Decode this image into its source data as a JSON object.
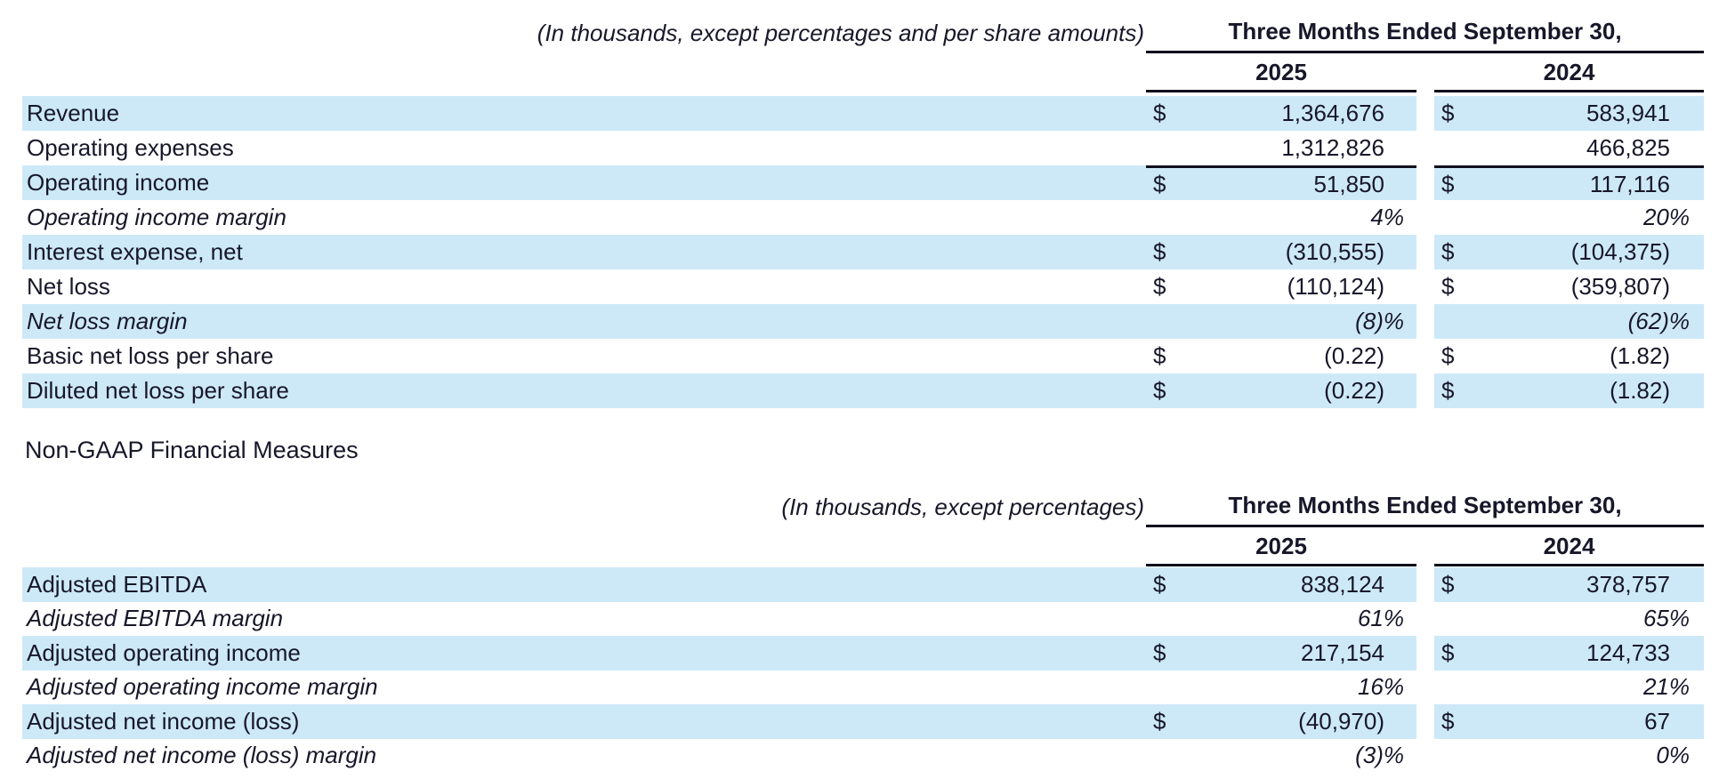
{
  "page": {
    "section_heading": "Non-GAAP Financial Measures"
  },
  "colors": {
    "row_highlight": "#cde9f8",
    "text": "#17172a",
    "rule": "#10101c"
  },
  "gaap_table": {
    "caption": "(In thousands, except percentages and per share amounts)",
    "period_header": "Three Months Ended September 30,",
    "years": [
      "2025",
      "2024"
    ],
    "rows": [
      {
        "label": "Revenue",
        "cur_2025": "$",
        "val_2025": "1,364,676",
        "cur_2024": "$",
        "val_2024": "583,941"
      },
      {
        "label": "Operating expenses",
        "cur_2025": "",
        "val_2025": "1,312,826",
        "cur_2024": "",
        "val_2024": "466,825"
      },
      {
        "label": "Operating income",
        "cur_2025": "$",
        "val_2025": "51,850",
        "cur_2024": "$",
        "val_2024": "117,116"
      },
      {
        "label": "Operating income margin",
        "cur_2025": "",
        "val_2025": "4%",
        "cur_2024": "",
        "val_2024": "20%"
      },
      {
        "label": "Interest expense, net",
        "cur_2025": "$",
        "val_2025": "(310,555)",
        "cur_2024": "$",
        "val_2024": "(104,375)"
      },
      {
        "label": "Net loss",
        "cur_2025": "$",
        "val_2025": "(110,124)",
        "cur_2024": "$",
        "val_2024": "(359,807)"
      },
      {
        "label": "Net loss margin",
        "cur_2025": "",
        "val_2025": "(8)%",
        "cur_2024": "",
        "val_2024": "(62)%"
      },
      {
        "label": "Basic net loss per share",
        "cur_2025": "$",
        "val_2025": "(0.22)",
        "cur_2024": "$",
        "val_2024": "(1.82)"
      },
      {
        "label": "Diluted net loss per share",
        "cur_2025": "$",
        "val_2025": "(0.22)",
        "cur_2024": "$",
        "val_2024": "(1.82)"
      }
    ]
  },
  "non_gaap_table": {
    "caption": "(In thousands, except percentages)",
    "period_header": "Three Months Ended September 30,",
    "years": [
      "2025",
      "2024"
    ],
    "rows": [
      {
        "label": "Adjusted EBITDA",
        "cur_2025": "$",
        "val_2025": "838,124",
        "cur_2024": "$",
        "val_2024": "378,757"
      },
      {
        "label": "Adjusted EBITDA margin",
        "cur_2025": "",
        "val_2025": "61%",
        "cur_2024": "",
        "val_2024": "65%"
      },
      {
        "label": "Adjusted operating income",
        "cur_2025": "$",
        "val_2025": "217,154",
        "cur_2024": "$",
        "val_2024": "124,733"
      },
      {
        "label": "Adjusted operating income margin",
        "cur_2025": "",
        "val_2025": "16%",
        "cur_2024": "",
        "val_2024": "21%"
      },
      {
        "label": "Adjusted net income (loss)",
        "cur_2025": "$",
        "val_2025": "(40,970)",
        "cur_2024": "$",
        "val_2024": "67"
      },
      {
        "label": "Adjusted net income (loss) margin",
        "cur_2025": "",
        "val_2025": "(3)%",
        "cur_2024": "",
        "val_2024": "0%"
      }
    ]
  }
}
